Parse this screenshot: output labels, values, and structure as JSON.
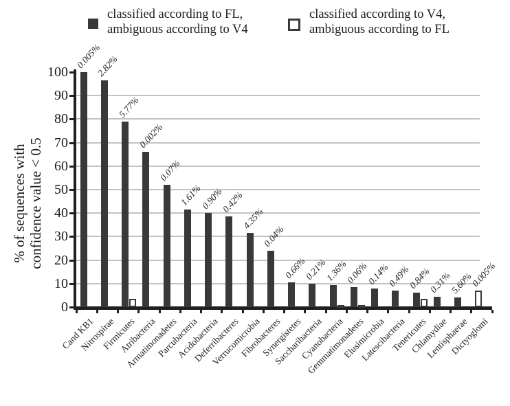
{
  "chart_data": {
    "type": "bar",
    "title": "",
    "ylabel_line1": "% of sequences with",
    "ylabel_line2": "confidence value < 0.5",
    "ylim": [
      0,
      100
    ],
    "yticks": [
      0,
      10,
      20,
      30,
      40,
      50,
      60,
      70,
      80,
      90,
      100
    ],
    "grid": "horizontal gridlines at 10..90",
    "legend_position": "top",
    "legend": [
      {
        "marker": "filled-square",
        "line1": "classified according to FL,",
        "line2": "ambiguous according to V4"
      },
      {
        "marker": "open-square",
        "line1": "classified according to V4,",
        "line2": "ambiguous according to FL"
      }
    ],
    "categories": [
      "Cand KB1",
      "Nitrospirae",
      "Firmicutes",
      "Atribacteria",
      "Armatimonadetes",
      "Parcubacteria",
      "Acidobacteria",
      "Deferribacteres",
      "Verrucomicrobia",
      "Fibrobacteres",
      "Synergistetes",
      "Saccharibacteria",
      "Cyanobacteria",
      "Gemmatimonadetes",
      "Elusimicrobia",
      "Latescibacteria",
      "Tenericutes",
      "Chlamydiae",
      "Lentisphaerae",
      "Dictyoglomi"
    ],
    "series": [
      {
        "name": "classified according to FL, ambiguous according to V4",
        "style": "filled",
        "values": [
          100,
          96.5,
          79,
          66,
          52,
          41.5,
          40,
          38.5,
          31.5,
          24,
          10.5,
          10,
          9.5,
          8.5,
          8,
          7,
          6,
          4.5,
          4,
          0
        ]
      },
      {
        "name": "classified according to V4, ambiguous according to FL",
        "style": "open",
        "values": [
          0,
          0,
          3.5,
          0,
          0,
          0,
          0,
          0,
          0,
          0,
          0,
          0,
          1,
          0.8,
          0,
          0,
          3.5,
          0,
          0,
          7
        ]
      }
    ],
    "bar_labels": [
      "0.005%",
      "2.82%",
      "5.77%",
      "0.002%",
      "0.07%",
      "1.61%",
      "0.90%",
      "0.42%",
      "4.35%",
      "0.04%",
      "0.66%",
      "0.21%",
      "1.36%",
      "0.06%",
      "0.14%",
      "0.49%",
      "0.84%",
      "0.31%",
      "5.60%",
      "0.005%"
    ],
    "colors": {
      "bar_fill": "#39393b",
      "open_bar_border": "#39393b",
      "open_bar_fill": "#ffffff",
      "gridline": "#c3c3c5",
      "axis": "#1f1f1f",
      "text": "#1c1c1c"
    }
  }
}
